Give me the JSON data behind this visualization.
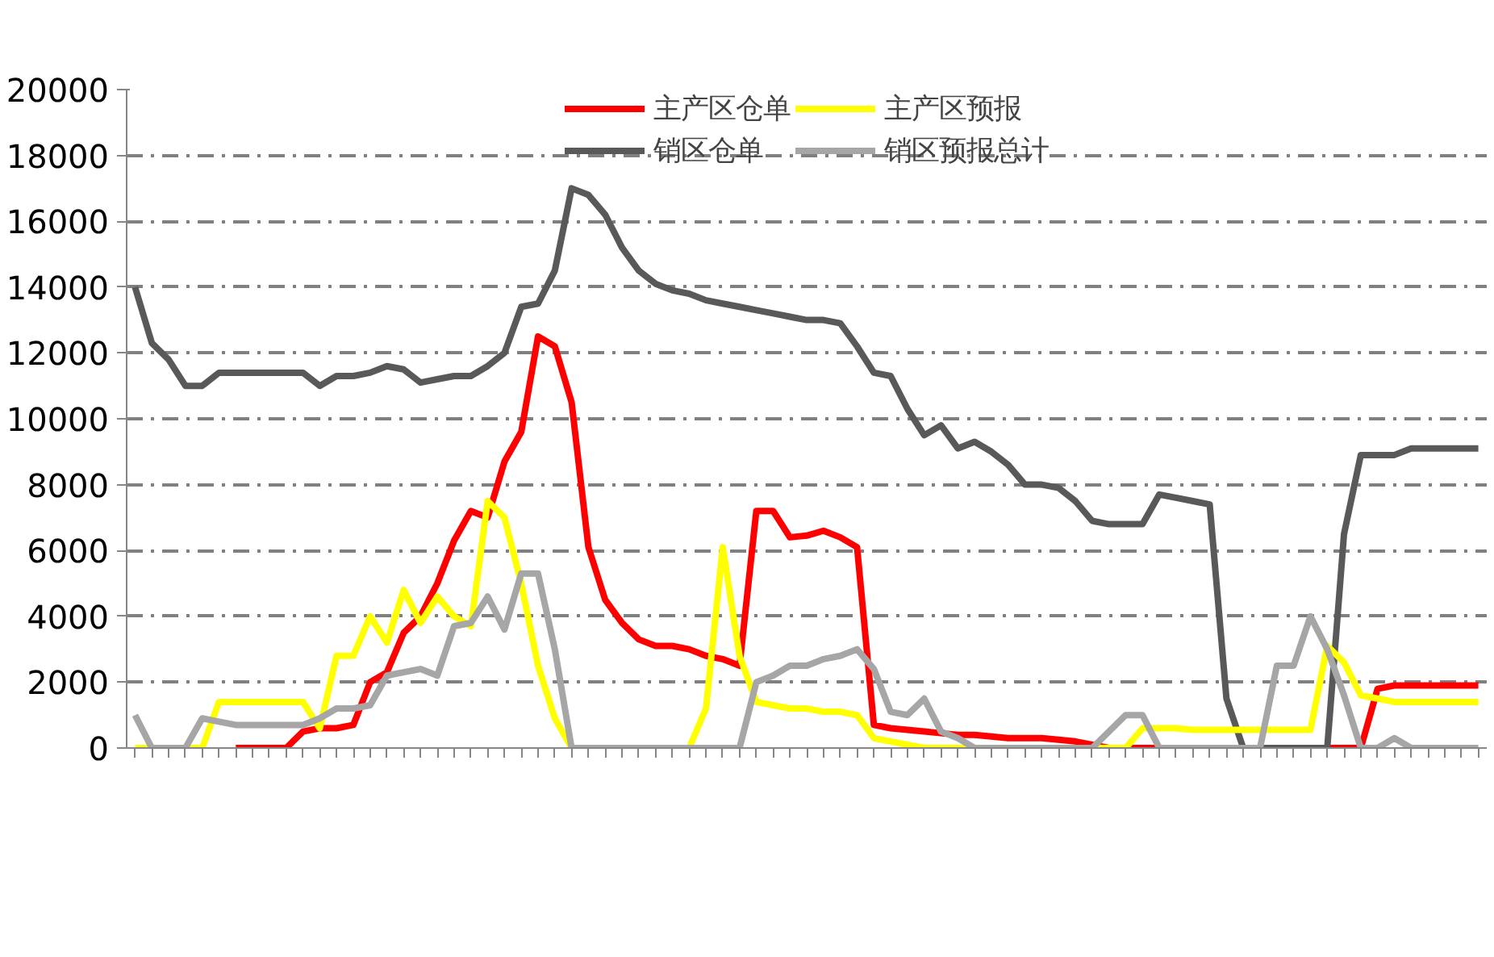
{
  "chart_data": {
    "type": "line",
    "categories": [
      null,
      null,
      null,
      null,
      null,
      null,
      null,
      null,
      null,
      null,
      null,
      null,
      null,
      null,
      null,
      null,
      null,
      null,
      null,
      null,
      null,
      null,
      null,
      null,
      null,
      null,
      null,
      null,
      null,
      null,
      null,
      null,
      null,
      null,
      null,
      null,
      null,
      null,
      null,
      null,
      null,
      null,
      null,
      null,
      null,
      null,
      null,
      null,
      null,
      null,
      null,
      null,
      null,
      null,
      null,
      null,
      null,
      null,
      null,
      null,
      null,
      null,
      null,
      null,
      null,
      null,
      null,
      null,
      null,
      null,
      null,
      null,
      null,
      null,
      null,
      null,
      null,
      null,
      null,
      null,
      null
    ],
    "series": [
      {
        "name": "主产区仓单",
        "color": "#ff0000",
        "values": [
          null,
          null,
          null,
          null,
          null,
          null,
          0,
          0,
          0,
          0,
          500,
          600,
          600,
          700,
          2000,
          2300,
          3500,
          4000,
          5000,
          6300,
          7200,
          7000,
          8700,
          9600,
          12500,
          12200,
          10500,
          6100,
          4500,
          3800,
          3300,
          3100,
          3100,
          3000,
          2800,
          2700,
          2500,
          7200,
          7200,
          6400,
          6450,
          6600,
          6400,
          6100,
          700,
          600,
          550,
          500,
          450,
          400,
          400,
          350,
          300,
          300,
          300,
          250,
          200,
          100,
          0,
          0,
          0,
          0,
          0,
          0,
          0,
          0,
          0,
          0,
          0,
          0,
          0,
          0,
          0,
          0,
          1800,
          1900,
          1900,
          1900,
          1900,
          1900,
          1900
        ]
      },
      {
        "name": "销区仓单",
        "color": "#595959",
        "values": [
          14000,
          12300,
          11800,
          11000,
          11000,
          11400,
          11400,
          11400,
          11400,
          11400,
          11400,
          11000,
          11300,
          11300,
          11400,
          11600,
          11500,
          11100,
          11200,
          11300,
          11300,
          11600,
          12000,
          13400,
          13500,
          14500,
          17000,
          16800,
          16200,
          15200,
          14500,
          14100,
          13900,
          13800,
          13600,
          13500,
          13400,
          13300,
          13200,
          13100,
          13000,
          13000,
          12900,
          12200,
          11400,
          11300,
          10300,
          9500,
          9800,
          9100,
          9300,
          9000,
          8600,
          8000,
          8000,
          7900,
          7500,
          6900,
          6800,
          6800,
          6800,
          7700,
          7600,
          7500,
          7400,
          1500,
          0,
          0,
          0,
          0,
          0,
          0,
          6500,
          8900,
          8900,
          8900,
          9100,
          9100,
          9100,
          9100,
          9100
        ]
      },
      {
        "name": "主产区预报",
        "color": "#ffff00",
        "values": [
          0,
          0,
          0,
          0,
          0,
          1400,
          1400,
          1400,
          1400,
          1400,
          1400,
          600,
          2800,
          2800,
          4000,
          3200,
          4800,
          3800,
          4600,
          4000,
          3700,
          7500,
          7000,
          5000,
          2500,
          900,
          0,
          0,
          0,
          0,
          0,
          0,
          0,
          0,
          1200,
          6100,
          2800,
          1400,
          1300,
          1200,
          1200,
          1100,
          1100,
          1000,
          300,
          200,
          100,
          0,
          0,
          0,
          0,
          0,
          0,
          0,
          0,
          0,
          0,
          0,
          0,
          0,
          600,
          600,
          600,
          550,
          550,
          550,
          550,
          550,
          550,
          550,
          550,
          3100,
          2600,
          1600,
          1500,
          1400,
          1400,
          1400,
          1400,
          1400,
          1400
        ]
      },
      {
        "name": "销区预报总计",
        "color": "#a6a6a6",
        "values": [
          1000,
          0,
          0,
          0,
          900,
          800,
          700,
          700,
          700,
          700,
          700,
          900,
          1200,
          1200,
          1300,
          2200,
          2300,
          2400,
          2200,
          3700,
          3800,
          4600,
          3600,
          5300,
          5300,
          3000,
          0,
          0,
          0,
          0,
          0,
          0,
          0,
          0,
          0,
          0,
          0,
          2000,
          2200,
          2500,
          2500,
          2700,
          2800,
          3000,
          2400,
          1100,
          1000,
          1500,
          500,
          300,
          0,
          0,
          0,
          0,
          0,
          0,
          0,
          0,
          500,
          1000,
          1000,
          0,
          0,
          0,
          0,
          0,
          0,
          0,
          2500,
          2500,
          4000,
          3000,
          1600,
          0,
          0,
          300,
          0,
          0,
          0,
          0,
          0
        ]
      }
    ],
    "ylim": [
      0,
      20000
    ],
    "yticks": [
      0,
      2000,
      4000,
      6000,
      8000,
      10000,
      12000,
      14000,
      16000,
      18000,
      20000
    ],
    "grid": "y",
    "legend": "top",
    "marker": "none",
    "line_style": "solid"
  }
}
